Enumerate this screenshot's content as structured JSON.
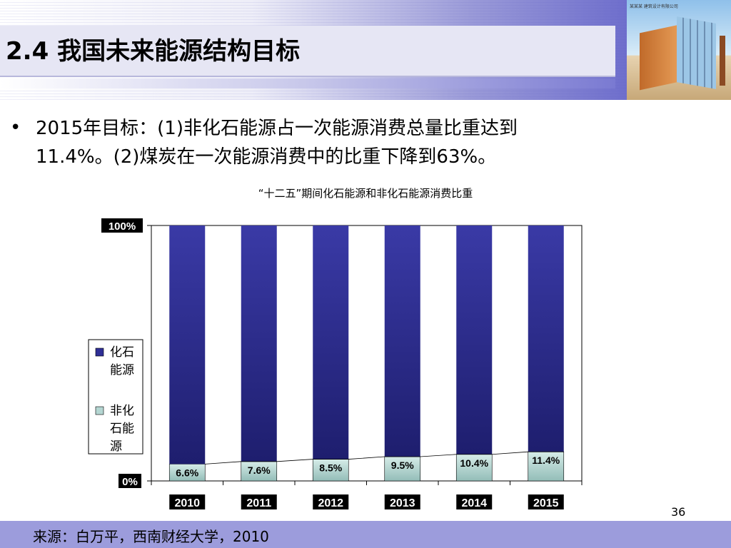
{
  "slide": {
    "title": "2.4 我国未来能源结构目标",
    "bullet_symbol": "•",
    "bullet_line1": "2015年目标：(1)非化石能源占一次能源消费总量比重达到",
    "bullet_line2": "11.4%。(2)煤炭在一次能源消费中的比重下降到63%。",
    "source": "来源：白万平，西南财经大学，2010",
    "page_number": "36",
    "photo_caption": "某某某 建筑设计有限公司"
  },
  "chart_data": {
    "type": "bar",
    "stacked": "percent",
    "title": "“十二五”期间化石能源和非化石能源消费比重",
    "categories": [
      "2010",
      "2011",
      "2012",
      "2013",
      "2014",
      "2015"
    ],
    "series": [
      {
        "name": "化石能源",
        "values": [
          93.4,
          92.4,
          91.5,
          90.5,
          89.6,
          88.6
        ],
        "color": "#2f2f96"
      },
      {
        "name": "非化石能源",
        "values": [
          6.6,
          7.6,
          8.5,
          9.5,
          10.4,
          11.4
        ],
        "color": "#b4d6d2"
      }
    ],
    "data_labels": [
      "6.6%",
      "7.6%",
      "8.5%",
      "9.5%",
      "10.4%",
      "11.4%"
    ],
    "y_ticks": [
      "0%",
      "100%"
    ],
    "ylim": [
      0,
      100
    ],
    "legend": [
      "化石能源",
      "非化石能源"
    ],
    "legend_position": "left"
  }
}
